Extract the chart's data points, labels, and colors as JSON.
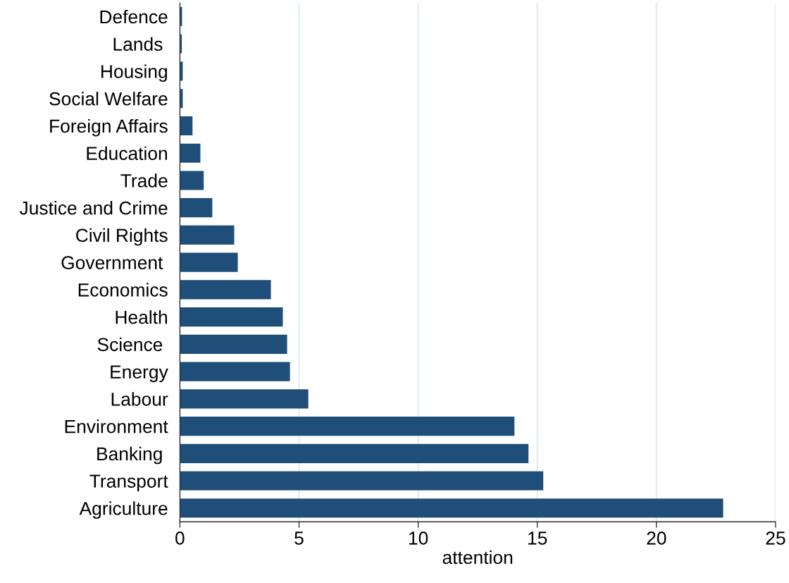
{
  "chart_data": {
    "type": "bar",
    "orientation": "horizontal",
    "xlabel": "attention",
    "categories": [
      "Defence",
      "Lands ",
      "Housing",
      "Social Welfare",
      "Foreign Affairs",
      "Education",
      "Trade",
      "Justice and Crime",
      "Civil Rights",
      "Government ",
      "Economics",
      "Health",
      "Science ",
      "Energy",
      "Labour",
      "Environment",
      "Banking ",
      "Transport",
      "Agriculture"
    ],
    "values": [
      0.09,
      0.08,
      0.12,
      0.12,
      0.53,
      0.86,
      1.0,
      1.36,
      2.28,
      2.43,
      3.82,
      4.32,
      4.5,
      4.62,
      5.39,
      14.04,
      14.63,
      15.25,
      22.8
    ],
    "color": "#1f4e79",
    "xlim": [
      0,
      25
    ],
    "xticks": [
      0,
      5,
      10,
      15,
      20,
      25
    ],
    "grid": "x"
  }
}
